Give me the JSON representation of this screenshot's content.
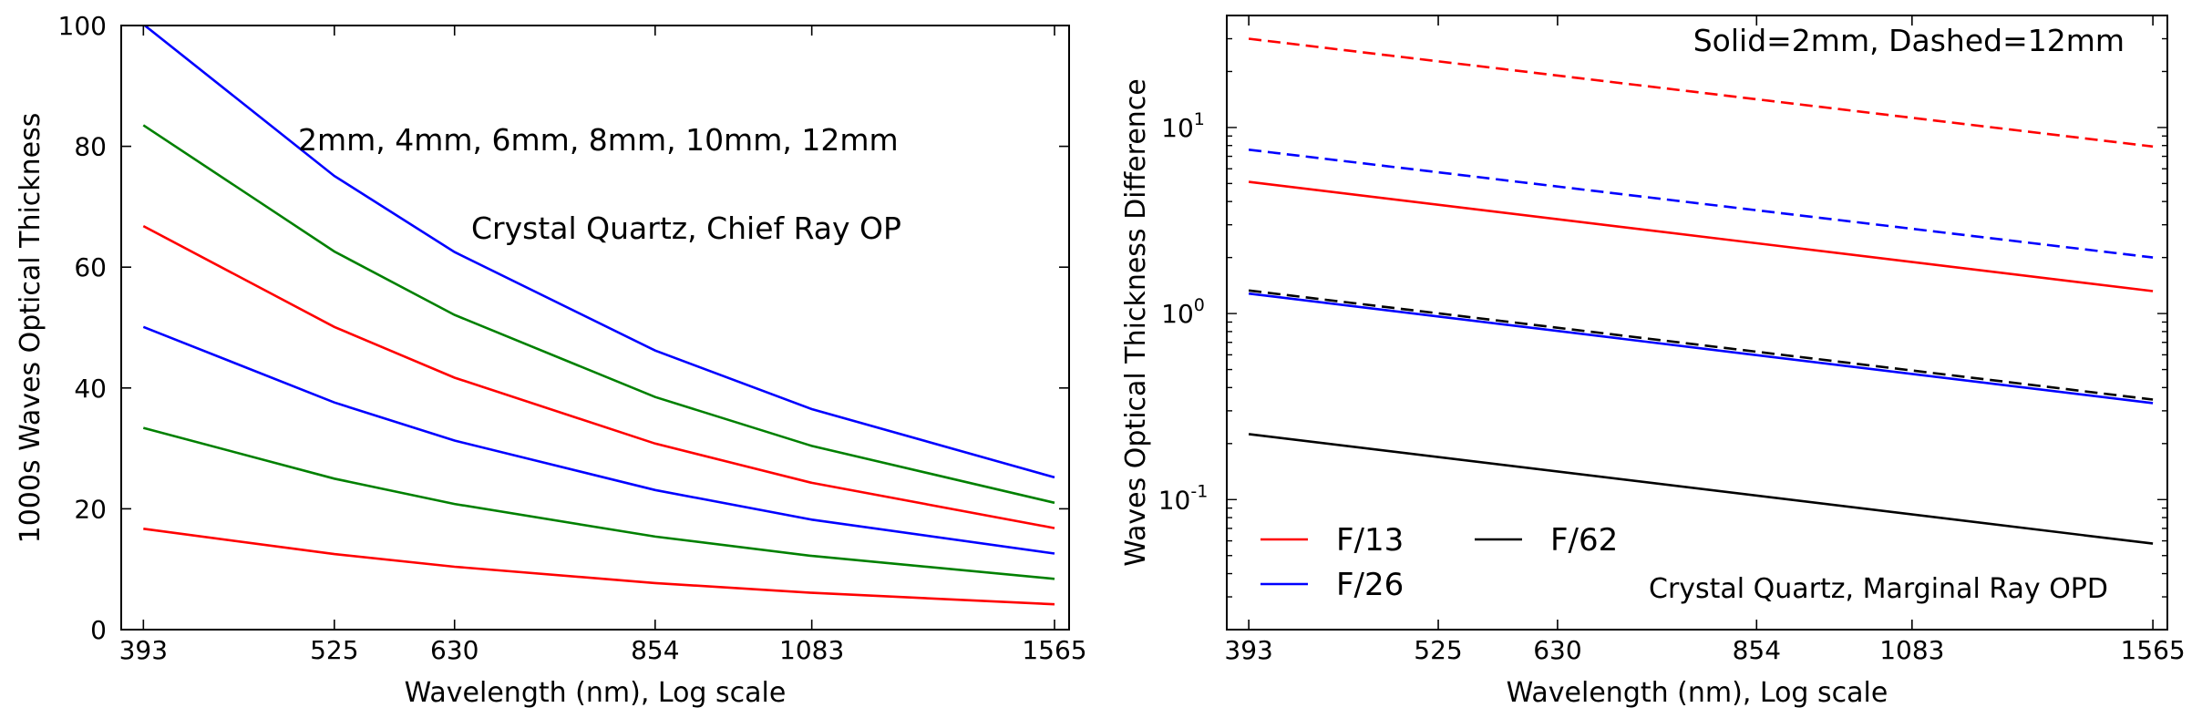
{
  "chart_data": [
    {
      "type": "line",
      "xscale": "log",
      "x": [
        393,
        525,
        630,
        854,
        1083,
        1565
      ],
      "xlim": [
        380,
        1600
      ],
      "ylim": [
        0,
        100
      ],
      "xticks": [
        "393",
        "525",
        "630",
        "854",
        "1083",
        "1565"
      ],
      "yticks": [
        "0",
        "20",
        "40",
        "60",
        "80",
        "100"
      ],
      "xlabel": "Wavelength (nm), Log scale",
      "ylabel": "1000s Waves Optical Thickness",
      "annotations": [
        "2mm,  4mm,  6mm,  8mm,  10mm,  12mm",
        "Crystal Quartz, Chief Ray OP"
      ],
      "series": [
        {
          "name": "2mm",
          "color": "#ff0000",
          "values": [
            16.7,
            12.5,
            10.4,
            7.7,
            6.1,
            4.2
          ]
        },
        {
          "name": "4mm",
          "color": "#008000",
          "values": [
            33.4,
            25.0,
            20.8,
            15.4,
            12.2,
            8.4
          ]
        },
        {
          "name": "6mm",
          "color": "#0000ff",
          "values": [
            50.1,
            37.6,
            31.3,
            23.1,
            18.2,
            12.6
          ]
        },
        {
          "name": "8mm",
          "color": "#ff0000",
          "values": [
            66.8,
            50.1,
            41.7,
            30.8,
            24.3,
            16.8
          ]
        },
        {
          "name": "10mm",
          "color": "#008000",
          "values": [
            83.5,
            62.6,
            52.1,
            38.5,
            30.4,
            21.0
          ]
        },
        {
          "name": "12mm",
          "color": "#0000ff",
          "values": [
            100.2,
            75.1,
            62.5,
            46.2,
            36.5,
            25.2
          ]
        }
      ]
    },
    {
      "type": "line",
      "xscale": "log",
      "yscale": "log",
      "x": [
        393,
        1565
      ],
      "xlim": [
        380,
        1600
      ],
      "ylim": [
        0.02,
        40
      ],
      "xticks": [
        "393",
        "525",
        "630",
        "854",
        "1083",
        "1565"
      ],
      "yticks": [
        {
          "base": "10",
          "exp": "-1"
        },
        {
          "base": "10",
          "exp": "0"
        },
        {
          "base": "10",
          "exp": "1"
        }
      ],
      "xlabel": "Wavelength (nm), Log scale",
      "ylabel": "Waves Optical Thickness Difference",
      "annotations": [
        "Solid=2mm, Dashed=12mm",
        "Crystal Quartz, Marginal Ray OPD"
      ],
      "legend": {
        "placement": "lower-left",
        "entries": [
          {
            "label": "F/13",
            "color": "#ff0000"
          },
          {
            "label": "F/26",
            "color": "#0000ff"
          },
          {
            "label": "F/62",
            "color": "#000000"
          }
        ]
      },
      "series": [
        {
          "name": "F/13 2mm",
          "color": "#ff0000",
          "dashed": false,
          "values": [
            5.1,
            1.32
          ]
        },
        {
          "name": "F/13 12mm",
          "color": "#ff0000",
          "dashed": true,
          "values": [
            30.0,
            7.9
          ]
        },
        {
          "name": "F/26 2mm",
          "color": "#0000ff",
          "dashed": false,
          "values": [
            1.28,
            0.33
          ]
        },
        {
          "name": "F/26 12mm",
          "color": "#0000ff",
          "dashed": true,
          "values": [
            7.6,
            2.0
          ]
        },
        {
          "name": "F/62 2mm",
          "color": "#000000",
          "dashed": false,
          "values": [
            0.225,
            0.058
          ]
        },
        {
          "name": "F/62 12mm",
          "color": "#000000",
          "dashed": true,
          "values": [
            1.33,
            0.345
          ]
        }
      ]
    }
  ]
}
